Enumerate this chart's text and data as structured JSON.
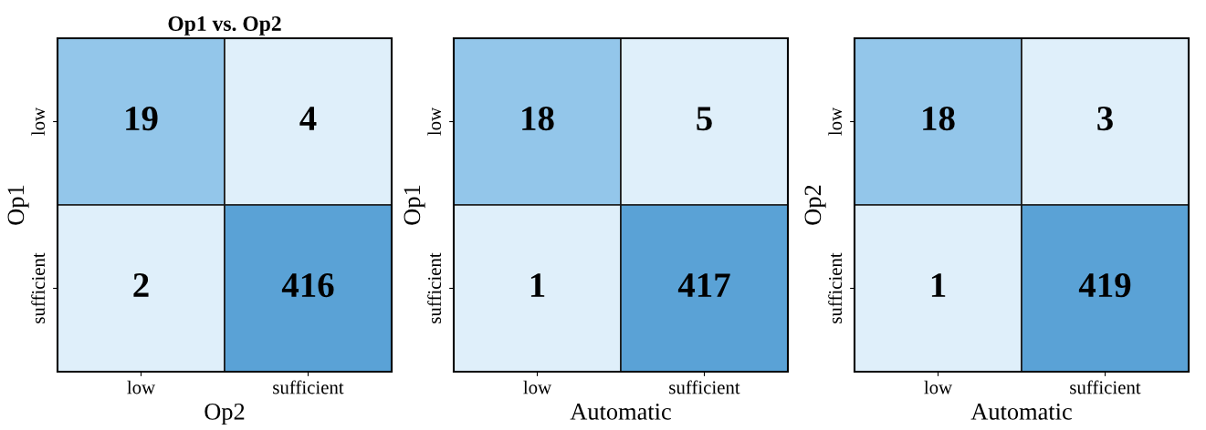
{
  "chart_data": [
    {
      "type": "heatmap",
      "title": "Op1 vs. Op2",
      "xlabel": "Op2",
      "ylabel": "Op1",
      "categories": [
        "low",
        "sufficient"
      ],
      "y_categories": [
        "low",
        "sufficient"
      ],
      "cells": [
        [
          19,
          4
        ],
        [
          2,
          416
        ]
      ],
      "colors": [
        [
          "#93c6ea",
          "#dfeffa"
        ],
        [
          "#dfeffa",
          "#5aa2d6"
        ]
      ],
      "data_labels": true
    },
    {
      "type": "heatmap",
      "xlabel": "Automatic",
      "ylabel": "Op1",
      "categories": [
        "low",
        "sufficient"
      ],
      "y_categories": [
        "low",
        "sufficient"
      ],
      "cells": [
        [
          18,
          5
        ],
        [
          1,
          417
        ]
      ],
      "colors": [
        [
          "#93c6ea",
          "#dfeffa"
        ],
        [
          "#dfeffa",
          "#5aa2d6"
        ]
      ],
      "data_labels": true
    },
    {
      "type": "heatmap",
      "xlabel": "Automatic",
      "ylabel": "Op2",
      "categories": [
        "low",
        "sufficient"
      ],
      "y_categories": [
        "low",
        "sufficient"
      ],
      "cells": [
        [
          18,
          3
        ],
        [
          1,
          419
        ]
      ],
      "colors": [
        [
          "#93c6ea",
          "#dfeffa"
        ],
        [
          "#dfeffa",
          "#5aa2d6"
        ]
      ],
      "data_labels": true
    }
  ]
}
